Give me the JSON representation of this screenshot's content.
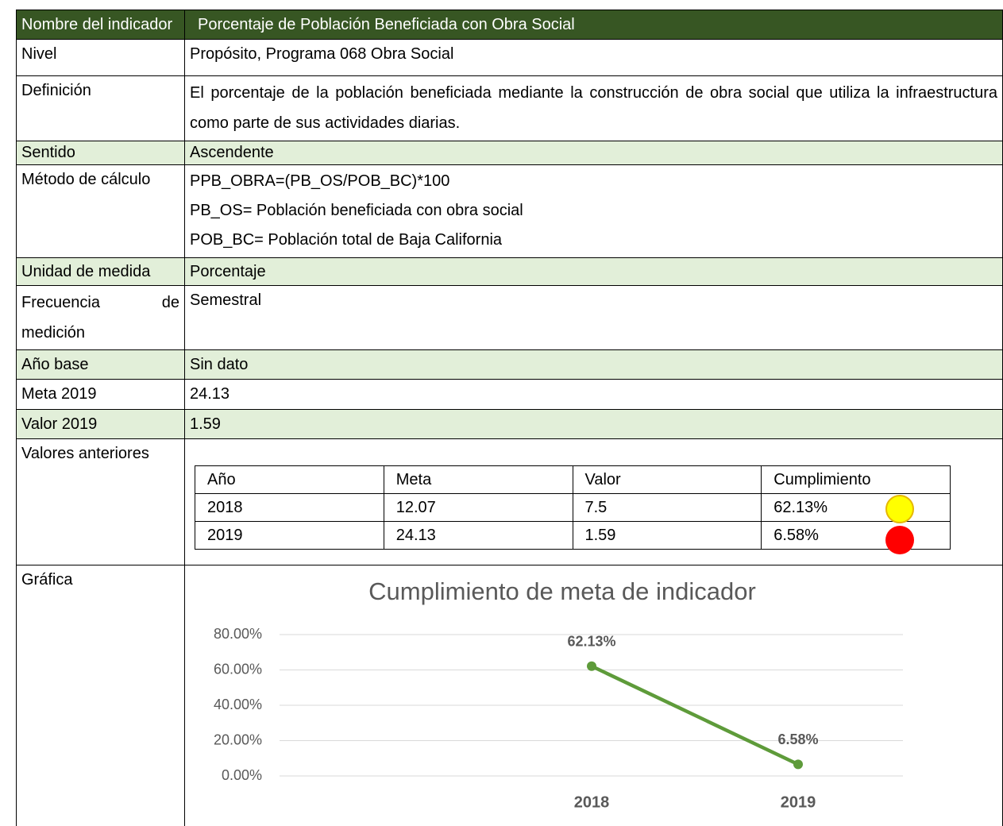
{
  "header": {
    "label": "Nombre del indicador",
    "value": "Porcentaje de Población Beneficiada con Obra Social"
  },
  "nivel": {
    "label": "Nivel",
    "value": "Propósito, Programa 068 Obra Social"
  },
  "definicion": {
    "label": "Definición",
    "value": "El porcentaje de la población beneficiada mediante la construcción de obra social que utiliza la infraestructura como parte de sus actividades diarias."
  },
  "sentido": {
    "label": "Sentido",
    "value": "Ascendente"
  },
  "metodo": {
    "label": "Método de cálculo",
    "lines": [
      "PPB_OBRA=(PB_OS/POB_BC)*100",
      "PB_OS= Población beneficiada con obra social",
      "POB_BC= Población total de Baja California"
    ]
  },
  "unidad": {
    "label": "Unidad de medida",
    "value": "Porcentaje"
  },
  "frecuencia": {
    "label": "Frecuencia de medición",
    "value": "Semestral"
  },
  "anio_base": {
    "label": "Año base",
    "value": "Sin dato"
  },
  "meta": {
    "label": "Meta 2019",
    "value": "24.13"
  },
  "valor": {
    "label": "Valor 2019",
    "value": "1.59"
  },
  "valores_anteriores": {
    "label": "Valores anteriores",
    "header": [
      "Año",
      "Meta",
      "Valor",
      "Cumplimiento"
    ],
    "rows": [
      [
        "2018",
        "12.07",
        "7.5",
        "62.13%"
      ],
      [
        "2019",
        "24.13",
        "1.59",
        "6.58%"
      ]
    ]
  },
  "grafica": {
    "label": "Gráfica"
  },
  "chart_data": {
    "type": "line",
    "title": "Cumplimiento de meta de indicador",
    "categories": [
      "2018",
      "2019"
    ],
    "values": [
      62.13,
      6.58
    ],
    "value_labels": [
      "62.13%",
      "6.58%"
    ],
    "color": "#5e9b3a",
    "ylim": [
      0,
      80
    ],
    "yticks": [
      {
        "value": 0,
        "label": "0.00%"
      },
      {
        "value": 20,
        "label": "20.00%"
      },
      {
        "value": 40,
        "label": "40.00%"
      },
      {
        "value": 60,
        "label": "60.00%"
      },
      {
        "value": 80,
        "label": "80.00%"
      }
    ],
    "grid": true
  }
}
